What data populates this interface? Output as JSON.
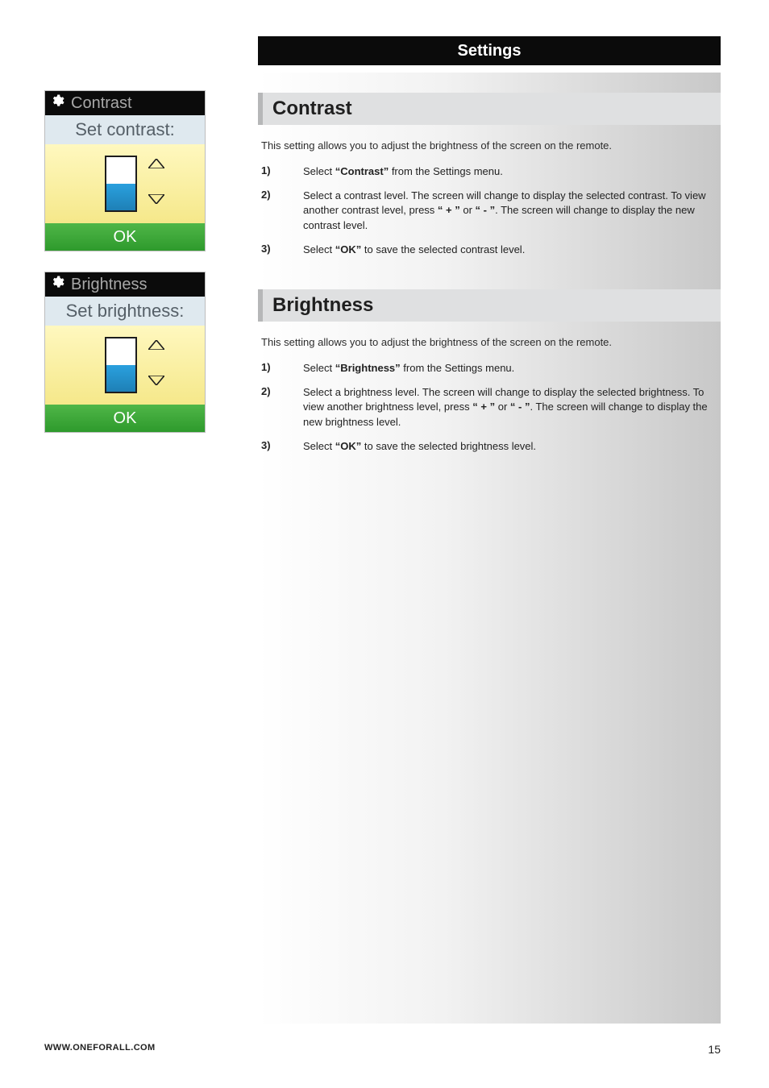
{
  "header": {
    "title": "Settings"
  },
  "sidebar": {
    "shots": [
      {
        "title": "Contrast",
        "subtitle": "Set contrast:",
        "fill_percent": 50,
        "ok": "OK"
      },
      {
        "title": "Brightness",
        "subtitle": "Set brightness:",
        "fill_percent": 50,
        "ok": "OK"
      }
    ]
  },
  "sections": [
    {
      "heading": "Contrast",
      "intro": "This setting allows you to adjust the brightness of the screen on the remote.",
      "steps": [
        {
          "n": "1)",
          "parts": [
            "Select ",
            {
              "b": "“Contrast”"
            },
            " from the Settings menu."
          ]
        },
        {
          "n": "2)",
          "parts": [
            "Select a contrast level. The screen will change to display the selected contrast. To view another contrast level, press ",
            {
              "b": "“ + ”"
            },
            " or ",
            {
              "b": "“ - ”"
            },
            ". The screen will change to display the new contrast level."
          ]
        },
        {
          "n": "3)",
          "parts": [
            "Select ",
            {
              "b": "“OK”"
            },
            " to save the selected contrast level."
          ]
        }
      ]
    },
    {
      "heading": "Brightness",
      "intro": "This setting allows you to adjust the brightness of the screen on the remote.",
      "steps": [
        {
          "n": "1)",
          "parts": [
            "Select ",
            {
              "b": "“Brightness”"
            },
            " from the Settings menu."
          ]
        },
        {
          "n": "2)",
          "parts": [
            "Select a brightness level. The screen will change to display the selected brightness. To view another brightness level, press ",
            {
              "b": "“ + ”"
            },
            " or ",
            {
              "b": "“ - ”"
            },
            ". The screen will change to display the new brightness level."
          ]
        },
        {
          "n": "3)",
          "parts": [
            "Select ",
            {
              "b": "“OK”"
            },
            " to save the selected brightness level."
          ]
        }
      ]
    }
  ],
  "footer": {
    "url": "WWW.ONEFORALL.COM",
    "page": "15"
  },
  "colors": {
    "header_bg": "#0b0b0b",
    "section_bg": "#dfe0e1",
    "section_border": "#b6b7b8",
    "ok_gradient_top": "#4fb648",
    "ok_gradient_bottom": "#2e9a2c",
    "level_gradient_top": "#2aa0de",
    "level_gradient_bottom": "#1e80b6",
    "yellow_top": "#fff8bf",
    "yellow_bottom": "#f5e88a",
    "subtitle_bg": "#dfe9ef"
  }
}
